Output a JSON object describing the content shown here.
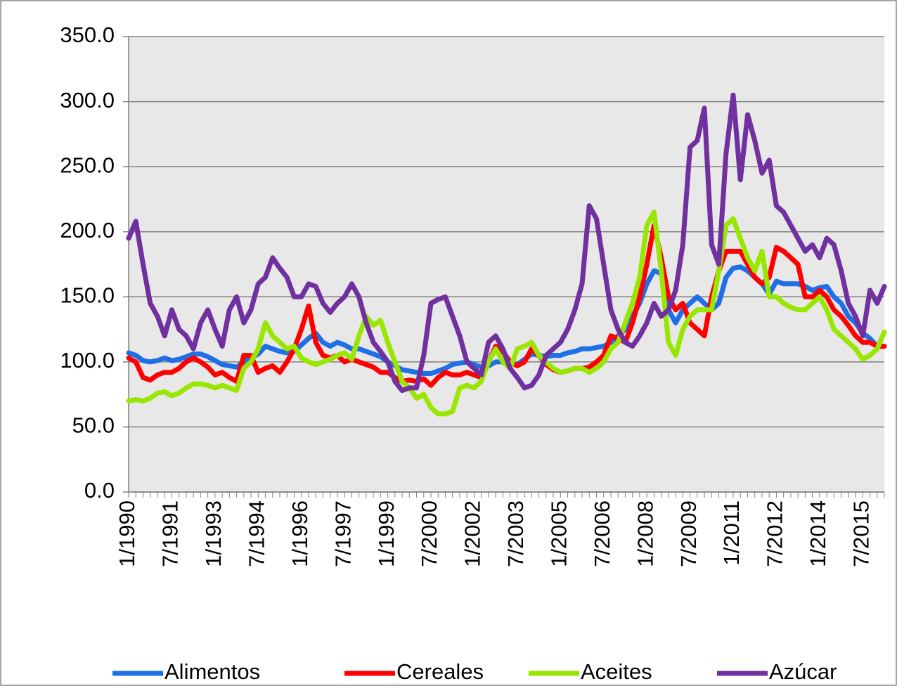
{
  "chart_data": {
    "type": "line",
    "categories": [
      "1/1990",
      null,
      null,
      null,
      null,
      null,
      "7/1991",
      null,
      null,
      null,
      null,
      null,
      "1/1993",
      null,
      null,
      null,
      null,
      null,
      "7/1994",
      null,
      null,
      null,
      null,
      null,
      "1/1996",
      null,
      null,
      null,
      null,
      null,
      "7/1997",
      null,
      null,
      null,
      null,
      null,
      "1/1999",
      null,
      null,
      null,
      null,
      null,
      "7/2000",
      null,
      null,
      null,
      null,
      null,
      "1/2002",
      null,
      null,
      null,
      null,
      null,
      "7/2003",
      null,
      null,
      null,
      null,
      null,
      "1/2005",
      null,
      null,
      null,
      null,
      null,
      "7/2006",
      null,
      null,
      null,
      null,
      null,
      "1/2008",
      null,
      null,
      null,
      null,
      null,
      "7/2009",
      null,
      null,
      null,
      null,
      null,
      "1/2011",
      null,
      null,
      null,
      null,
      null,
      "7/2012",
      null,
      null,
      null,
      null,
      null,
      "1/2014",
      null,
      null,
      null,
      null,
      null,
      "7/2015",
      null,
      null,
      null
    ],
    "series": [
      {
        "name": "Alimentos",
        "color": "#1f6fe6",
        "values": [
          107,
          105,
          101,
          100,
          101,
          103,
          101,
          102,
          104,
          106,
          106,
          104,
          101,
          98,
          97,
          96,
          100,
          103,
          106,
          112,
          110,
          108,
          107,
          108,
          113,
          118,
          122,
          115,
          112,
          115,
          113,
          110,
          110,
          108,
          106,
          104,
          100,
          97,
          94,
          93,
          92,
          91,
          91,
          93,
          95,
          98,
          99,
          100,
          98,
          96,
          97,
          100,
          100,
          99,
          98,
          102,
          106,
          105,
          104,
          105,
          105,
          107,
          108,
          110,
          110,
          111,
          112,
          115,
          120,
          125,
          135,
          145,
          160,
          170,
          168,
          140,
          130,
          140,
          145,
          150,
          145,
          140,
          145,
          165,
          172,
          173,
          170,
          165,
          160,
          152,
          162,
          160,
          160,
          160,
          158,
          155,
          157,
          158,
          150,
          145,
          135,
          130,
          122,
          118,
          112,
          112
        ]
      },
      {
        "name": "Cereales",
        "color": "#ff0000",
        "values": [
          103,
          100,
          88,
          86,
          90,
          92,
          92,
          95,
          100,
          103,
          100,
          96,
          90,
          92,
          88,
          85,
          105,
          105,
          92,
          95,
          97,
          92,
          100,
          110,
          125,
          143,
          115,
          105,
          103,
          105,
          100,
          102,
          100,
          98,
          96,
          92,
          92,
          88,
          85,
          86,
          85,
          87,
          82,
          88,
          92,
          90,
          90,
          92,
          90,
          88,
          100,
          112,
          108,
          100,
          97,
          100,
          110,
          105,
          98,
          94,
          92,
          93,
          95,
          95,
          96,
          100,
          105,
          120,
          118,
          115,
          130,
          150,
          175,
          205,
          180,
          150,
          140,
          145,
          130,
          125,
          120,
          150,
          170,
          185,
          185,
          185,
          175,
          165,
          160,
          165,
          188,
          185,
          180,
          175,
          150,
          150,
          155,
          150,
          140,
          135,
          128,
          120,
          115,
          115,
          112,
          112
        ]
      },
      {
        "name": "Aceites",
        "color": "#99e600",
        "values": [
          70,
          71,
          70,
          72,
          76,
          77,
          74,
          76,
          80,
          83,
          83,
          82,
          80,
          82,
          80,
          78,
          95,
          100,
          110,
          130,
          120,
          115,
          110,
          112,
          103,
          100,
          98,
          100,
          102,
          105,
          107,
          102,
          120,
          135,
          128,
          132,
          115,
          100,
          85,
          80,
          72,
          75,
          65,
          60,
          60,
          62,
          80,
          82,
          80,
          85,
          100,
          110,
          100,
          95,
          110,
          112,
          115,
          105,
          100,
          95,
          92,
          93,
          95,
          95,
          92,
          95,
          100,
          110,
          115,
          130,
          145,
          165,
          205,
          215,
          170,
          115,
          105,
          125,
          135,
          140,
          140,
          140,
          170,
          205,
          210,
          195,
          180,
          170,
          185,
          150,
          150,
          145,
          142,
          140,
          140,
          145,
          150,
          140,
          125,
          120,
          115,
          110,
          102,
          105,
          110,
          123
        ]
      },
      {
        "name": "Azúcar",
        "color": "#7030a0",
        "values": [
          195,
          208,
          175,
          145,
          135,
          120,
          140,
          125,
          120,
          110,
          130,
          140,
          125,
          112,
          140,
          150,
          130,
          140,
          160,
          165,
          180,
          172,
          165,
          150,
          150,
          160,
          158,
          145,
          138,
          145,
          150,
          160,
          150,
          130,
          115,
          108,
          100,
          85,
          78,
          80,
          80,
          105,
          145,
          148,
          150,
          135,
          120,
          100,
          95,
          90,
          115,
          120,
          110,
          95,
          88,
          80,
          82,
          90,
          105,
          110,
          115,
          125,
          140,
          160,
          220,
          210,
          175,
          140,
          125,
          115,
          112,
          120,
          130,
          145,
          135,
          140,
          155,
          190,
          265,
          270,
          295,
          190,
          175,
          260,
          305,
          240,
          290,
          270,
          245,
          255,
          220,
          215,
          205,
          195,
          185,
          190,
          180,
          195,
          190,
          170,
          145,
          135,
          120,
          155,
          145,
          158
        ]
      }
    ],
    "ylim": [
      0,
      350
    ],
    "yticks": [
      {
        "value": 0,
        "label": "0.0"
      },
      {
        "value": 50,
        "label": "50.0"
      },
      {
        "value": 100,
        "label": "100.0"
      },
      {
        "value": 150,
        "label": "150.0"
      },
      {
        "value": 200,
        "label": "200.0"
      },
      {
        "value": 250,
        "label": "250.0"
      },
      {
        "value": 300,
        "label": "300.0"
      },
      {
        "value": 350,
        "label": "350.0"
      }
    ],
    "grid": true,
    "legend": "bottom"
  }
}
